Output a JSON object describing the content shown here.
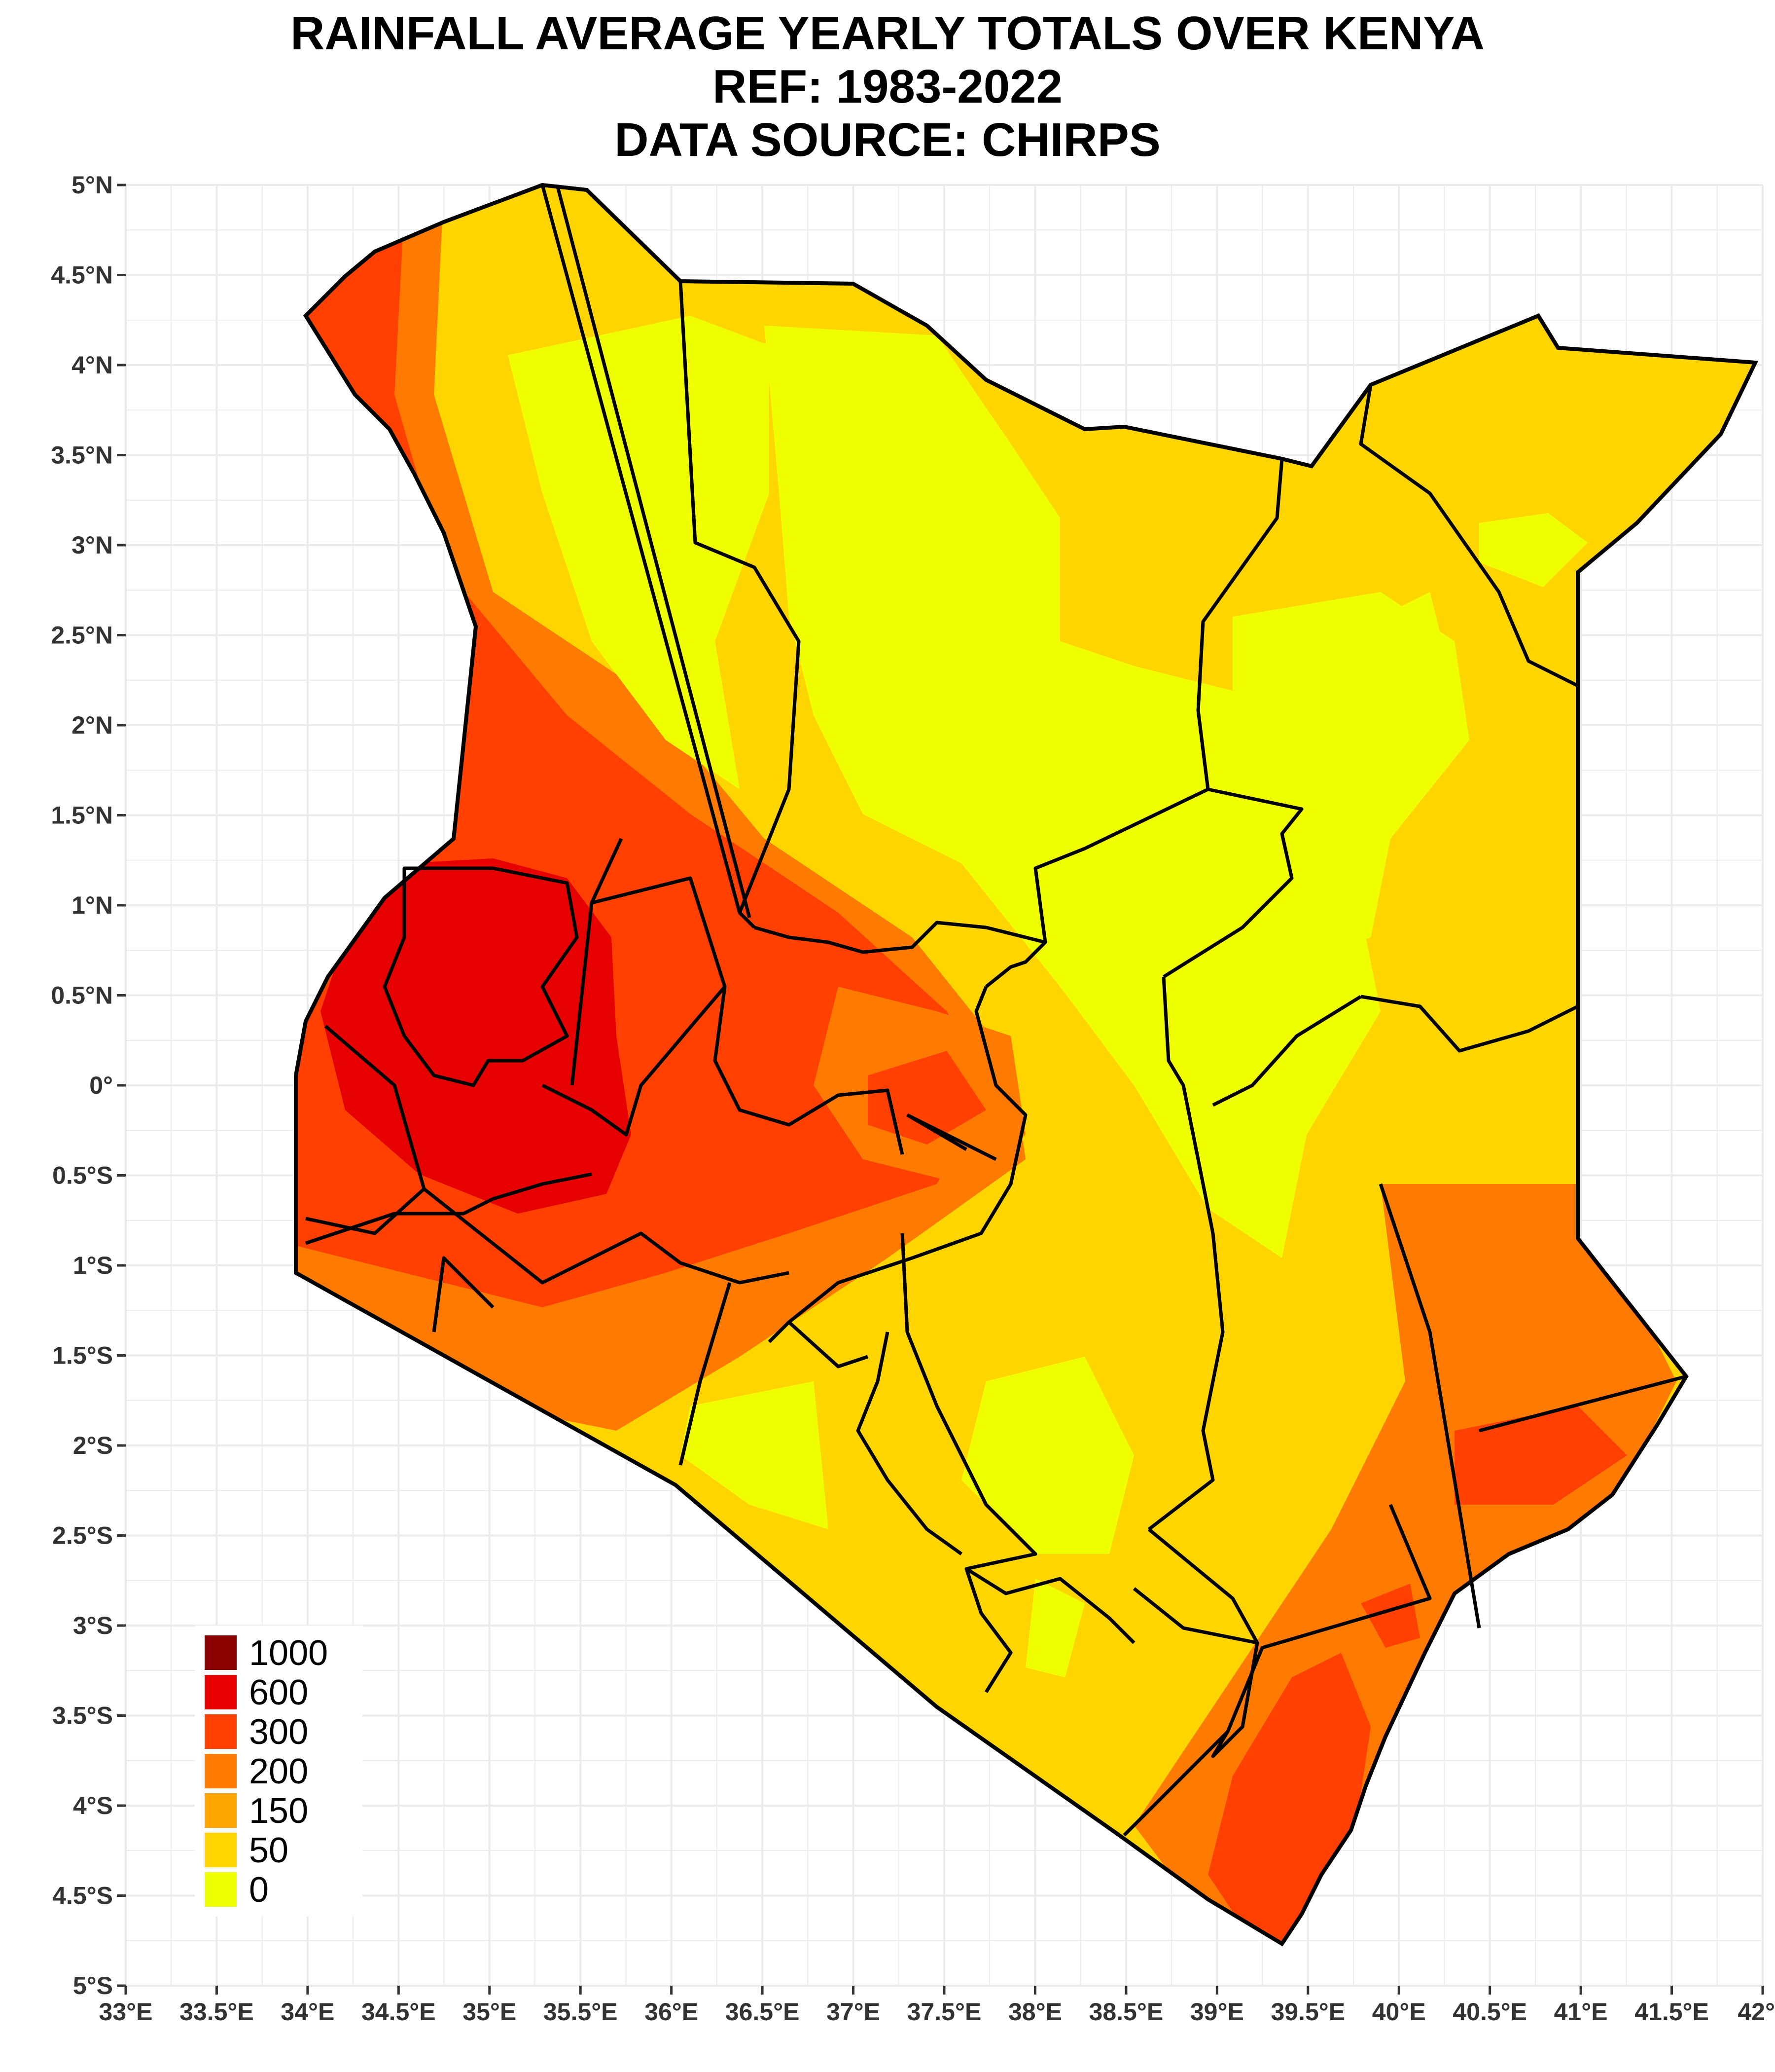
{
  "title_lines": [
    "RAINFALL AVERAGE YEARLY TOTALS OVER KENYA",
    "REF: 1983-2022",
    "DATA SOURCE: CHIRPS"
  ],
  "y_ticks": [
    {
      "lat": 5,
      "label": "5°N"
    },
    {
      "lat": 4.5,
      "label": "4.5°N"
    },
    {
      "lat": 4,
      "label": "4°N"
    },
    {
      "lat": 3.5,
      "label": "3.5°N"
    },
    {
      "lat": 3,
      "label": "3°N"
    },
    {
      "lat": 2.5,
      "label": "2.5°N"
    },
    {
      "lat": 2,
      "label": "2°N"
    },
    {
      "lat": 1.5,
      "label": "1.5°N"
    },
    {
      "lat": 1,
      "label": "1°N"
    },
    {
      "lat": 0.5,
      "label": "0.5°N"
    },
    {
      "lat": 0,
      "label": "0°"
    },
    {
      "lat": -0.5,
      "label": "0.5°S"
    },
    {
      "lat": -1,
      "label": "1°S"
    },
    {
      "lat": -1.5,
      "label": "1.5°S"
    },
    {
      "lat": -2,
      "label": "2°S"
    },
    {
      "lat": -2.5,
      "label": "2.5°S"
    },
    {
      "lat": -3,
      "label": "3°S"
    },
    {
      "lat": -3.5,
      "label": "3.5°S"
    },
    {
      "lat": -4,
      "label": "4°S"
    },
    {
      "lat": -4.5,
      "label": "4.5°S"
    },
    {
      "lat": -5,
      "label": "5°S"
    }
  ],
  "x_ticks": [
    {
      "lon": 33,
      "label": "33°E"
    },
    {
      "lon": 33.5,
      "label": "33.5°E"
    },
    {
      "lon": 34,
      "label": "34°E"
    },
    {
      "lon": 34.5,
      "label": "34.5°E"
    },
    {
      "lon": 35,
      "label": "35°E"
    },
    {
      "lon": 35.5,
      "label": "35.5°E"
    },
    {
      "lon": 36,
      "label": "36°E"
    },
    {
      "lon": 36.5,
      "label": "36.5°E"
    },
    {
      "lon": 37,
      "label": "37°E"
    },
    {
      "lon": 37.5,
      "label": "37.5°E"
    },
    {
      "lon": 38,
      "label": "38°E"
    },
    {
      "lon": 38.5,
      "label": "38.5°E"
    },
    {
      "lon": 39,
      "label": "39°E"
    },
    {
      "lon": 39.5,
      "label": "39.5°E"
    },
    {
      "lon": 40,
      "label": "40°E"
    },
    {
      "lon": 40.5,
      "label": "40.5°E"
    },
    {
      "lon": 41,
      "label": "41°E"
    },
    {
      "lon": 41.5,
      "label": "41.5°E"
    },
    {
      "lon": 42,
      "label": "42°"
    }
  ],
  "extent": {
    "lon": [
      33,
      42
    ],
    "lat": [
      -5,
      5
    ]
  },
  "legend": [
    {
      "label": "1000",
      "color": "#8b0000"
    },
    {
      "label": "600",
      "color": "#e60000"
    },
    {
      "label": "300",
      "color": "#ff4000"
    },
    {
      "label": "200",
      "color": "#ff7a00"
    },
    {
      "label": "150",
      "color": "#ffa500"
    },
    {
      "label": "50",
      "color": "#ffd500"
    },
    {
      "label": "0",
      "color": "#f0ff00"
    }
  ],
  "colors": {
    "background": "#ffffff",
    "grid": "#ebebeb",
    "boundary": "#000000",
    "axis_text": "#333333"
  }
}
